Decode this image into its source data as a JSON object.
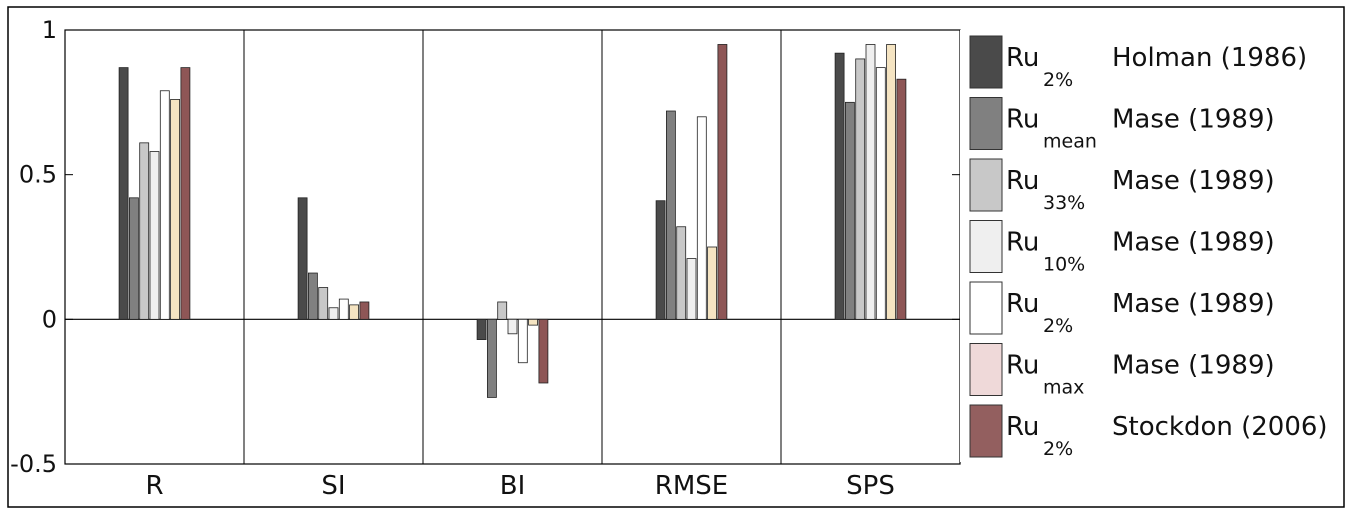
{
  "chart_data": {
    "type": "bar",
    "categories": [
      "R",
      "SI",
      "BI",
      "RMSE",
      "SPS"
    ],
    "ylim": [
      -0.5,
      1
    ],
    "yticks": [
      -0.5,
      0,
      0.5,
      1
    ],
    "ytick_labels": [
      "-0.5",
      "0",
      "0.5",
      "1"
    ],
    "grid": false,
    "legend_placement": "right",
    "series": [
      {
        "name": "Holman (1986)",
        "symbol": "Ru",
        "subscript": "2%",
        "color": "#4a4a4a",
        "values": [
          0.87,
          0.42,
          -0.07,
          0.41,
          0.92
        ]
      },
      {
        "name": "Mase (1989)",
        "symbol": "Ru",
        "subscript": "mean",
        "color": "#808080",
        "values": [
          0.42,
          0.16,
          -0.27,
          0.72,
          0.75
        ]
      },
      {
        "name": "Mase (1989)",
        "symbol": "Ru",
        "subscript": "33%",
        "color": "#c8c8c8",
        "values": [
          0.61,
          0.11,
          0.06,
          0.32,
          0.9
        ]
      },
      {
        "name": "Mase (1989)",
        "symbol": "Ru",
        "subscript": "10%",
        "color": "#efefef",
        "values": [
          0.58,
          0.04,
          -0.05,
          0.21,
          0.95
        ]
      },
      {
        "name": "Mase (1989)",
        "symbol": "Ru",
        "subscript": "2%",
        "color": "#ffffff",
        "values": [
          0.79,
          0.07,
          -0.15,
          0.7,
          0.87
        ]
      },
      {
        "name": "Mase (1989)",
        "symbol": "Ru",
        "subscript": "max",
        "color": "#f5e4c2",
        "values": [
          0.76,
          0.05,
          -0.02,
          0.25,
          0.95
        ]
      },
      {
        "name": "Stockdon (2006)",
        "symbol": "Ru",
        "subscript": "2%",
        "color": "#8e5656",
        "values": [
          0.87,
          0.06,
          -0.22,
          0.95,
          0.83
        ]
      }
    ],
    "legend_swatch_colors": [
      "#4a4a4a",
      "#808080",
      "#c8c8c8",
      "#efefef",
      "#ffffff",
      "#efd9d9",
      "#935f5f"
    ]
  }
}
